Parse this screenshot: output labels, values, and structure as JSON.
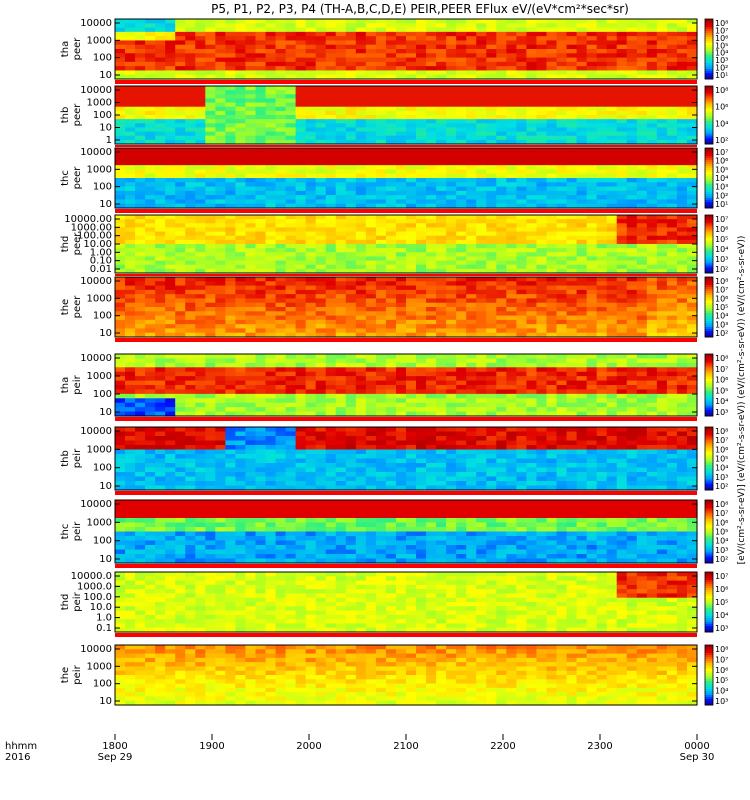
{
  "title": "P5, P1, P2, P3, P4 (TH-A,B,C,D,E) PEIR,PEER EFlux eV/(eV*cm²*sec*sr)",
  "colorbar_label": "[eV/(cm²-s-sr-eV)] (eV/(cm²-s-sr-eV)) (eV/(cm²-s-sr-eV)) (eV/(cm²-s-sr-eV))",
  "footer": {
    "row1": "hhmm",
    "row2": "2016"
  },
  "chart_data": {
    "type": "heatmap",
    "x_ticks": [
      "1800",
      "1900",
      "2000",
      "2100",
      "2200",
      "2300",
      "0000"
    ],
    "x_sub_ticks": [
      "Sep 29",
      "Sep 30"
    ],
    "panels": [
      {
        "label1": "tha",
        "label2": "peer",
        "yticks": [
          "10000",
          "1000",
          "100",
          "10"
        ],
        "cbar_ticks": [
          "10⁸",
          "10⁷",
          "10⁶",
          "10⁵",
          "10⁴",
          "10³",
          "10²",
          "10¹"
        ],
        "kind": "peer_red"
      },
      {
        "label1": "thb",
        "label2": "peer",
        "yticks": [
          "10000",
          "1000",
          "100",
          "10",
          "1"
        ],
        "cbar_ticks": [
          "10⁸",
          "10⁶",
          "10⁴",
          "10²"
        ],
        "kind": "peer_thb"
      },
      {
        "label1": "thc",
        "label2": "peer",
        "yticks": [
          "10000",
          "1000",
          "100",
          "10"
        ],
        "cbar_ticks": [
          "10⁷",
          "10⁶",
          "10⁵",
          "10⁴",
          "10³",
          "10²",
          "10¹"
        ],
        "kind": "peer_thc"
      },
      {
        "label1": "thd",
        "label2": "peer",
        "yticks": [
          "10000.00",
          "1000.00",
          "100.00",
          "10.00",
          "1.00",
          "0.10",
          "0.01"
        ],
        "cbar_ticks": [
          "10⁷",
          "10⁶",
          "10⁵",
          "10⁴",
          "10³",
          "10²"
        ],
        "kind": "peer_thd"
      },
      {
        "label1": "the",
        "label2": "peer",
        "yticks": [
          "10000",
          "1000",
          "100",
          "10"
        ],
        "cbar_ticks": [
          "10⁸",
          "10⁷",
          "10⁶",
          "10⁵",
          "10⁴",
          "10³",
          "10²"
        ],
        "kind": "peer_the"
      },
      {
        "label1": "tha",
        "label2": "peir",
        "yticks": [
          "10000",
          "1000",
          "100",
          "10"
        ],
        "cbar_ticks": [
          "10⁸",
          "10⁷",
          "10⁶",
          "10⁵",
          "10⁴",
          "10³"
        ],
        "kind": "peir_tha"
      },
      {
        "label1": "thb",
        "label2": "peir",
        "yticks": [
          "10000",
          "1000",
          "100",
          "10"
        ],
        "cbar_ticks": [
          "10⁸",
          "10⁷",
          "10⁶",
          "10⁵",
          "10⁴",
          "10³",
          "10²"
        ],
        "kind": "peir_thb"
      },
      {
        "label1": "thc",
        "label2": "peir",
        "yticks": [
          "10000",
          "1000",
          "100",
          "10"
        ],
        "cbar_ticks": [
          "10⁸",
          "10⁷",
          "10⁶",
          "10⁵",
          "10⁴",
          "10³",
          "10²"
        ],
        "kind": "peir_thc"
      },
      {
        "label1": "thd",
        "label2": "peir",
        "yticks": [
          "10000.0",
          "1000.0",
          "100.0",
          "10.0",
          "1.0",
          "0.1"
        ],
        "cbar_ticks": [
          "10⁷",
          "10⁶",
          "10⁵",
          "10⁴",
          "10³"
        ],
        "kind": "peir_thd"
      },
      {
        "label1": "the",
        "label2": "peir",
        "yticks": [
          "10000",
          "1000",
          "100",
          "10"
        ],
        "cbar_ticks": [
          "10⁸",
          "10⁷",
          "10⁶",
          "10⁵",
          "10⁴",
          "10³"
        ],
        "kind": "peir_the"
      }
    ],
    "colormap": [
      "#1a0060",
      "#0010ff",
      "#00a0ff",
      "#00e0e0",
      "#30f080",
      "#b0ff20",
      "#ffff00",
      "#ffc000",
      "#ff6000",
      "#e00000",
      "#a00000"
    ]
  }
}
